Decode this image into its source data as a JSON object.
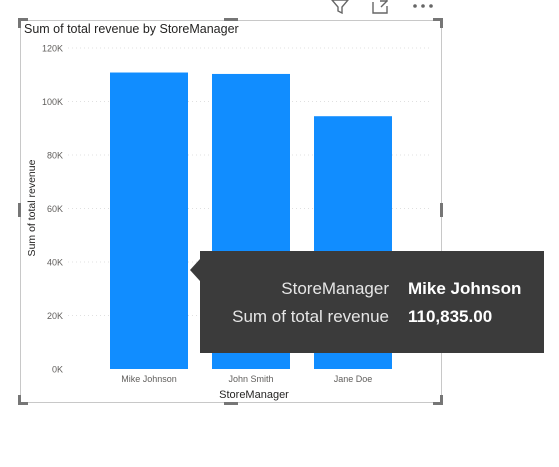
{
  "visual": {
    "title": "Sum of total revenue by StoreManager",
    "toolbar": {
      "filter_icon": "filter-icon",
      "focus_icon": "focus-mode-icon",
      "more_icon": "more-options-icon"
    }
  },
  "chart_data": {
    "type": "bar",
    "title": "Sum of total revenue by StoreManager",
    "xlabel": "StoreManager",
    "ylabel": "Sum of total revenue",
    "categories": [
      "Mike Johnson",
      "John Smith",
      "Jane Doe"
    ],
    "values": [
      110835,
      110300,
      94500
    ],
    "ylim": [
      0,
      120000
    ],
    "yticks": [
      0,
      20000,
      40000,
      60000,
      80000,
      100000,
      120000
    ],
    "ytick_labels": [
      "0K",
      "20K",
      "40K",
      "60K",
      "80K",
      "100K",
      "120K"
    ],
    "grid": true,
    "color": "#118dff"
  },
  "tooltip": {
    "rows": [
      {
        "label": "StoreManager",
        "value": "Mike Johnson"
      },
      {
        "label": "Sum of total revenue",
        "value": "110,835.00"
      }
    ]
  }
}
